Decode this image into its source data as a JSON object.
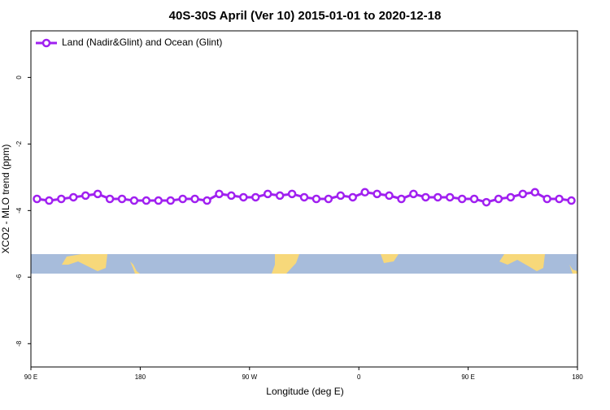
{
  "chart_data": {
    "type": "line",
    "title": "40S-30S April (Ver 10)   2015-01-01 to 2020-12-18",
    "x_label": "Longitude (deg E)",
    "y_label": "XCO2 - MLO trend (ppm)",
    "x": [
      95,
      105,
      115,
      125,
      135,
      145,
      155,
      165,
      175,
      185,
      195,
      205,
      215,
      225,
      235,
      245,
      255,
      265,
      275,
      285,
      295,
      305,
      315,
      325,
      335,
      345,
      355,
      365,
      375,
      385,
      395,
      405,
      415,
      425,
      435,
      445,
      455,
      465,
      475,
      485,
      495,
      505,
      515,
      525,
      535
    ],
    "series": [
      {
        "name": "Land (Nadir&Glint) and Ocean (Glint)",
        "color": "#a020f0",
        "values": [
          -3.65,
          -3.7,
          -3.65,
          -3.6,
          -3.55,
          -3.5,
          -3.65,
          -3.65,
          -3.7,
          -3.7,
          -3.7,
          -3.7,
          -3.65,
          -3.65,
          -3.7,
          -3.5,
          -3.55,
          -3.6,
          -3.6,
          -3.5,
          -3.55,
          -3.5,
          -3.6,
          -3.65,
          -3.65,
          -3.55,
          -3.6,
          -3.45,
          -3.5,
          -3.55,
          -3.65,
          -3.5,
          -3.6,
          -3.6,
          -3.6,
          -3.65,
          -3.65,
          -3.75,
          -3.65,
          -3.6,
          -3.5,
          -3.45,
          -3.65,
          -3.65,
          -3.7
        ]
      }
    ],
    "xlim": [
      90,
      540
    ],
    "xticks": [
      {
        "value": 90,
        "label": "90 E"
      },
      180,
      {
        "value": 270,
        "label": "90 W"
      },
      {
        "value": 360,
        "label": "0"
      },
      {
        "value": 450,
        "label": "90 E"
      },
      {
        "value": 540,
        "label": "180"
      }
    ],
    "ylim": [
      -8.7,
      1.4
    ],
    "yticks": [
      0,
      -2,
      -4,
      -6,
      -8
    ],
    "legend": "top-left"
  }
}
